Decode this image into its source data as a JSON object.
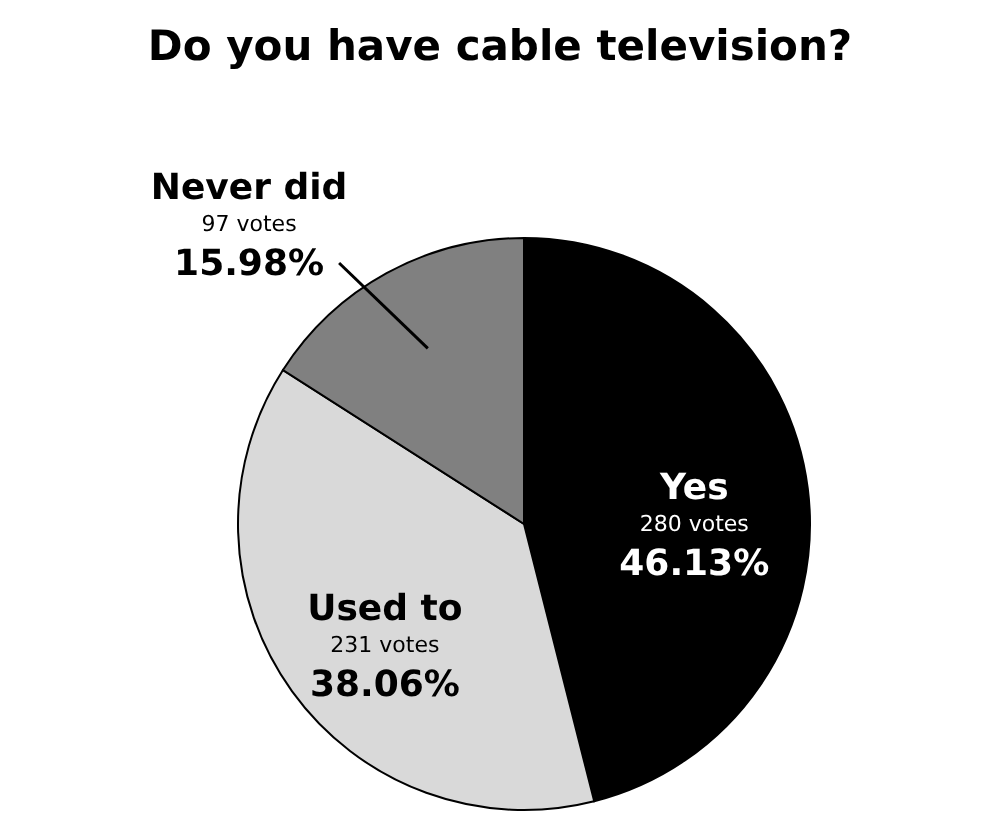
{
  "chart_data": {
    "type": "pie",
    "title": "Do you have cable television?",
    "categories": [
      "Yes",
      "Used to",
      "Never did"
    ],
    "values": [
      280,
      231,
      97
    ],
    "colors": [
      "#000000",
      "#d9d9d9",
      "#808080"
    ],
    "value_labels": [
      "280 votes\n46.13%",
      "231 votes\n38.06%",
      "97 votes\n15.98%"
    ]
  }
}
